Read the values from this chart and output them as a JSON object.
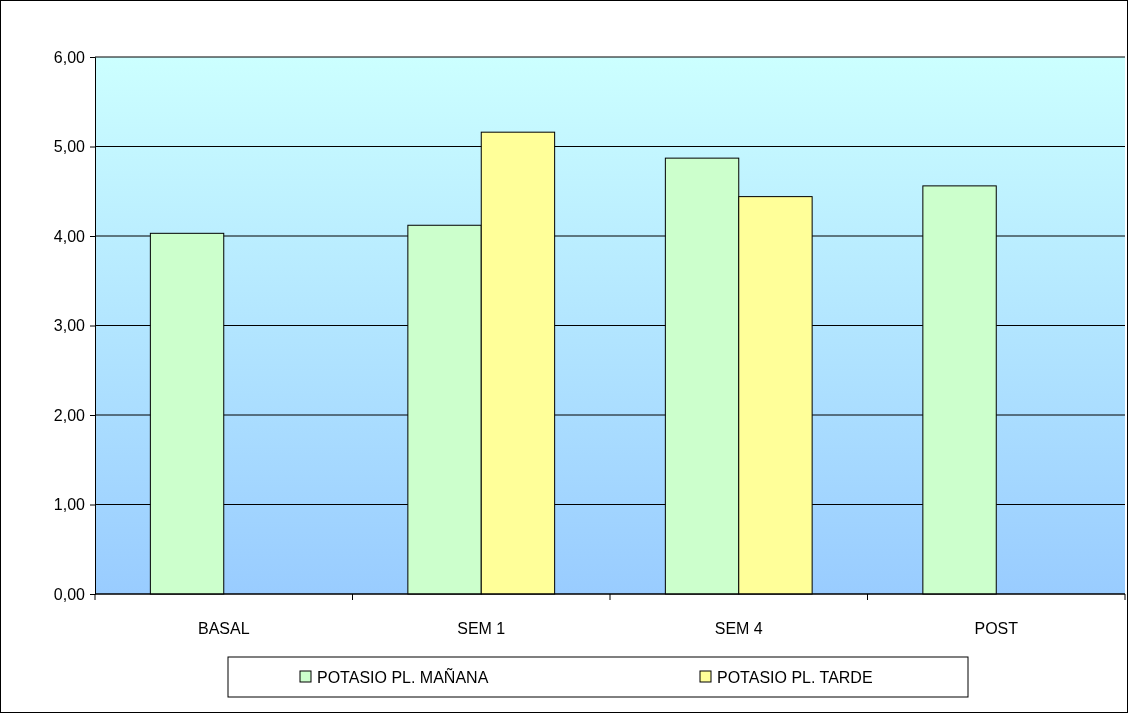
{
  "chart_data": {
    "type": "bar",
    "categories": [
      "BASAL",
      "SEM 1",
      "SEM 4",
      "POST"
    ],
    "series": [
      {
        "name": "POTASIO PL. MAÑANA",
        "color": "#ccffcc",
        "values": [
          4.03,
          4.12,
          4.87,
          4.56
        ]
      },
      {
        "name": "POTASIO PL. TARDE",
        "color": "#ffff99",
        "values": [
          null,
          5.16,
          4.44,
          null
        ]
      }
    ],
    "ylim": [
      0,
      6
    ],
    "yticks": [
      {
        "value": 0,
        "label": "0,00"
      },
      {
        "value": 1,
        "label": "1,00"
      },
      {
        "value": 2,
        "label": "2,00"
      },
      {
        "value": 3,
        "label": "3,00"
      },
      {
        "value": 4,
        "label": "4,00"
      },
      {
        "value": 5,
        "label": "5,00"
      },
      {
        "value": 6,
        "label": "6,00"
      }
    ],
    "grid": "y",
    "legend": "bottom"
  }
}
